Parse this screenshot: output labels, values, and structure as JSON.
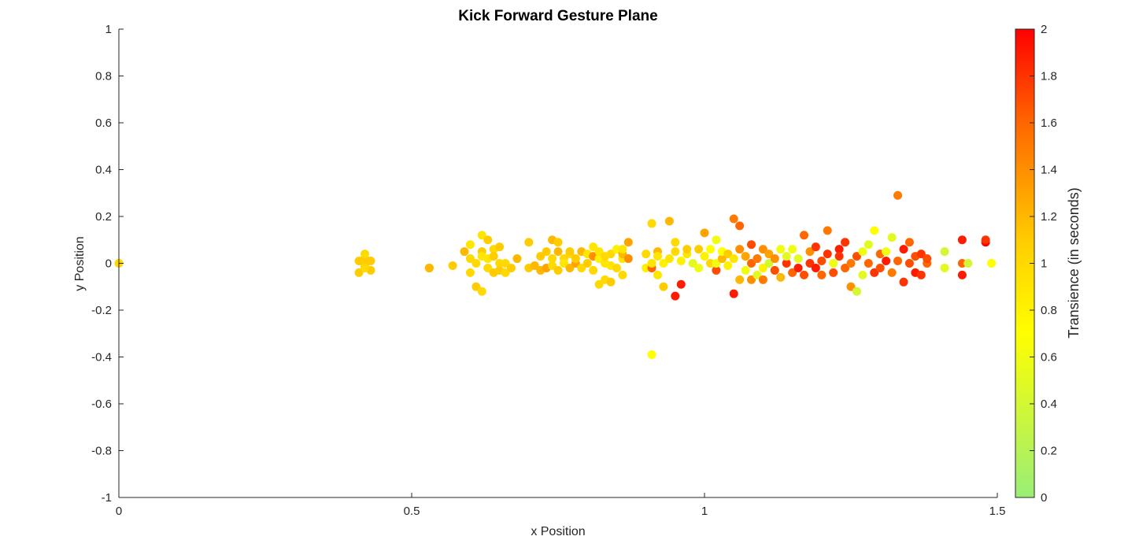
{
  "chart_data": {
    "type": "scatter",
    "title": "Kick Forward Gesture Plane",
    "xlabel": "x Position",
    "ylabel": "y Position",
    "xlim": [
      0,
      1.5
    ],
    "ylim": [
      -1,
      1
    ],
    "xticks": [
      "0",
      "0.5",
      "1",
      "1.5"
    ],
    "yticks": [
      "-1",
      "-0.8",
      "-0.6",
      "-0.4",
      "-0.2",
      "0",
      "0.2",
      "0.4",
      "0.6",
      "0.8",
      "1"
    ],
    "grid": false,
    "colorbar": {
      "label": "Transience (in seconds)",
      "range": [
        0,
        2
      ],
      "ticks": [
        "0",
        "0.2",
        "0.4",
        "0.6",
        "0.8",
        "1",
        "1.2",
        "1.4",
        "1.6",
        "1.8",
        "2"
      ],
      "colormap": [
        "#99ee77",
        "#ffff00",
        "#ffcc00",
        "#ff6600",
        "#ff0000"
      ]
    },
    "points": [
      [
        0.0,
        0.0,
        1.0
      ],
      [
        0.41,
        -0.04,
        1.1
      ],
      [
        0.42,
        0.02,
        1.1
      ],
      [
        0.42,
        -0.01,
        1.1
      ],
      [
        0.42,
        0.04,
        1.0
      ],
      [
        0.43,
        -0.03,
        1.1
      ],
      [
        0.41,
        0.01,
        1.1
      ],
      [
        0.43,
        0.01,
        1.1
      ],
      [
        0.42,
        -0.02,
        1.0
      ],
      [
        0.53,
        -0.02,
        1.3
      ],
      [
        0.53,
        -0.02,
        1.2
      ],
      [
        0.57,
        -0.01,
        1.1
      ],
      [
        0.59,
        0.05,
        1.2
      ],
      [
        0.6,
        -0.04,
        1.0
      ],
      [
        0.6,
        0.08,
        0.9
      ],
      [
        0.6,
        0.02,
        1.0
      ],
      [
        0.61,
        -0.1,
        1.1
      ],
      [
        0.61,
        0.0,
        1.0
      ],
      [
        0.62,
        -0.12,
        1.0
      ],
      [
        0.62,
        0.12,
        0.9
      ],
      [
        0.62,
        0.05,
        1.1
      ],
      [
        0.62,
        0.03,
        0.9
      ],
      [
        0.63,
        -0.02,
        1.0
      ],
      [
        0.63,
        0.1,
        1.1
      ],
      [
        0.63,
        0.02,
        0.9
      ],
      [
        0.64,
        -0.04,
        1.1
      ],
      [
        0.64,
        0.06,
        1.0
      ],
      [
        0.64,
        0.03,
        1.1
      ],
      [
        0.65,
        0.0,
        1.0
      ],
      [
        0.65,
        -0.03,
        1.1
      ],
      [
        0.65,
        0.07,
        1.1
      ],
      [
        0.66,
        0.0,
        1.0
      ],
      [
        0.66,
        -0.04,
        1.0
      ],
      [
        0.67,
        -0.02,
        1.1
      ],
      [
        0.68,
        0.02,
        1.2
      ],
      [
        0.7,
        -0.02,
        1.1
      ],
      [
        0.7,
        0.09,
        1.1
      ],
      [
        0.71,
        -0.01,
        1.2
      ],
      [
        0.72,
        -0.03,
        1.2
      ],
      [
        0.72,
        0.03,
        1.1
      ],
      [
        0.73,
        -0.02,
        1.3
      ],
      [
        0.73,
        0.05,
        1.1
      ],
      [
        0.74,
        0.1,
        1.2
      ],
      [
        0.74,
        -0.01,
        1.0
      ],
      [
        0.74,
        0.02,
        1.0
      ],
      [
        0.75,
        0.09,
        1.1
      ],
      [
        0.75,
        0.05,
        1.2
      ],
      [
        0.75,
        -0.03,
        1.1
      ],
      [
        0.76,
        0.02,
        1.0
      ],
      [
        0.76,
        0.0,
        0.9
      ],
      [
        0.77,
        0.04,
        1.0
      ],
      [
        0.77,
        -0.02,
        1.2
      ],
      [
        0.77,
        0.05,
        1.1
      ],
      [
        0.78,
        0.0,
        1.3
      ],
      [
        0.78,
        0.02,
        1.1
      ],
      [
        0.79,
        -0.02,
        1.0
      ],
      [
        0.79,
        0.05,
        1.2
      ],
      [
        0.8,
        0.0,
        1.1
      ],
      [
        0.8,
        0.04,
        0.9
      ],
      [
        0.81,
        -0.03,
        1.0
      ],
      [
        0.81,
        0.03,
        1.4
      ],
      [
        0.81,
        0.07,
        0.9
      ],
      [
        0.82,
        -0.09,
        1.0
      ],
      [
        0.82,
        0.02,
        0.8
      ],
      [
        0.82,
        0.05,
        0.9
      ],
      [
        0.83,
        -0.07,
        1.0
      ],
      [
        0.83,
        0.0,
        0.9
      ],
      [
        0.83,
        0.03,
        1.0
      ],
      [
        0.84,
        -0.08,
        1.1
      ],
      [
        0.84,
        -0.01,
        0.9
      ],
      [
        0.84,
        0.04,
        1.0
      ],
      [
        0.85,
        0.06,
        0.8
      ],
      [
        0.85,
        -0.02,
        1.0
      ],
      [
        0.86,
        0.02,
        0.9
      ],
      [
        0.86,
        0.04,
        1.2
      ],
      [
        0.86,
        -0.05,
        1.0
      ],
      [
        0.86,
        0.06,
        0.9
      ],
      [
        0.87,
        0.02,
        1.4
      ],
      [
        0.87,
        0.09,
        1.3
      ],
      [
        0.9,
        -0.02,
        0.8
      ],
      [
        0.9,
        0.04,
        1.0
      ],
      [
        0.91,
        -0.02,
        1.6
      ],
      [
        0.91,
        0.0,
        0.9
      ],
      [
        0.91,
        0.17,
        1.0
      ],
      [
        0.91,
        -0.39,
        0.7
      ],
      [
        0.92,
        0.05,
        1.2
      ],
      [
        0.92,
        0.03,
        0.9
      ],
      [
        0.92,
        -0.05,
        0.9
      ],
      [
        0.93,
        0.0,
        0.8
      ],
      [
        0.93,
        -0.1,
        1.1
      ],
      [
        0.94,
        0.18,
        1.2
      ],
      [
        0.94,
        0.02,
        0.9
      ],
      [
        0.95,
        -0.14,
        1.9
      ],
      [
        0.95,
        0.05,
        1.0
      ],
      [
        0.95,
        0.09,
        1.0
      ],
      [
        0.96,
        -0.09,
        1.9
      ],
      [
        0.96,
        0.01,
        0.8
      ],
      [
        0.97,
        0.04,
        0.9
      ],
      [
        0.97,
        0.06,
        1.1
      ],
      [
        0.98,
        0.0,
        0.5
      ],
      [
        0.99,
        0.06,
        1.1
      ],
      [
        0.99,
        -0.02,
        0.6
      ],
      [
        1.0,
        0.13,
        1.3
      ],
      [
        1.0,
        0.03,
        0.8
      ],
      [
        1.01,
        0.06,
        0.7
      ],
      [
        1.01,
        0.0,
        1.0
      ],
      [
        1.02,
        -0.03,
        1.7
      ],
      [
        1.02,
        0.0,
        0.6
      ],
      [
        1.02,
        0.1,
        0.6
      ],
      [
        1.03,
        0.02,
        1.2
      ],
      [
        1.03,
        0.05,
        0.7
      ],
      [
        1.04,
        -0.01,
        0.8
      ],
      [
        1.04,
        0.04,
        1.1
      ],
      [
        1.05,
        -0.13,
        1.9
      ],
      [
        1.05,
        0.19,
        1.5
      ],
      [
        1.05,
        0.02,
        0.9
      ],
      [
        1.06,
        -0.07,
        1.2
      ],
      [
        1.06,
        0.06,
        1.4
      ],
      [
        1.06,
        0.16,
        1.6
      ],
      [
        1.07,
        -0.03,
        0.6
      ],
      [
        1.07,
        0.03,
        1.3
      ],
      [
        1.08,
        0.0,
        1.6
      ],
      [
        1.08,
        -0.07,
        1.4
      ],
      [
        1.08,
        0.08,
        1.7
      ],
      [
        1.09,
        -0.05,
        0.5
      ],
      [
        1.09,
        0.02,
        1.5
      ],
      [
        1.1,
        -0.02,
        0.8
      ],
      [
        1.1,
        0.06,
        1.4
      ],
      [
        1.1,
        -0.07,
        1.5
      ],
      [
        1.11,
        0.04,
        1.3
      ],
      [
        1.11,
        0.0,
        0.4
      ],
      [
        1.12,
        -0.03,
        1.7
      ],
      [
        1.12,
        0.02,
        1.4
      ],
      [
        1.13,
        0.06,
        0.6
      ],
      [
        1.13,
        -0.06,
        1.2
      ],
      [
        1.14,
        0.0,
        1.8
      ],
      [
        1.14,
        0.03,
        0.5
      ],
      [
        1.15,
        -0.04,
        1.6
      ],
      [
        1.15,
        0.06,
        0.6
      ],
      [
        1.16,
        -0.02,
        1.9
      ],
      [
        1.16,
        0.02,
        0.5
      ],
      [
        1.17,
        0.12,
        1.6
      ],
      [
        1.17,
        -0.05,
        1.7
      ],
      [
        1.18,
        0.0,
        1.8
      ],
      [
        1.18,
        0.05,
        1.4
      ],
      [
        1.19,
        -0.02,
        1.9
      ],
      [
        1.19,
        0.07,
        1.8
      ],
      [
        1.2,
        0.01,
        1.7
      ],
      [
        1.2,
        -0.05,
        1.6
      ],
      [
        1.21,
        0.14,
        1.5
      ],
      [
        1.21,
        0.04,
        1.8
      ],
      [
        1.22,
        0.0,
        0.6
      ],
      [
        1.22,
        -0.04,
        1.7
      ],
      [
        1.23,
        0.06,
        1.9
      ],
      [
        1.23,
        0.03,
        1.8
      ],
      [
        1.24,
        -0.02,
        1.6
      ],
      [
        1.24,
        0.09,
        1.8
      ],
      [
        1.25,
        0.0,
        1.5
      ],
      [
        1.25,
        -0.1,
        1.4
      ],
      [
        1.26,
        -0.12,
        0.4
      ],
      [
        1.26,
        0.03,
        1.7
      ],
      [
        1.27,
        -0.05,
        0.5
      ],
      [
        1.27,
        0.05,
        0.6
      ],
      [
        1.28,
        0.08,
        0.5
      ],
      [
        1.28,
        0.0,
        1.6
      ],
      [
        1.29,
        0.14,
        0.7
      ],
      [
        1.29,
        -0.04,
        1.8
      ],
      [
        1.3,
        0.04,
        1.6
      ],
      [
        1.3,
        -0.02,
        1.7
      ],
      [
        1.31,
        0.01,
        1.9
      ],
      [
        1.31,
        0.05,
        0.6
      ],
      [
        1.32,
        -0.04,
        1.5
      ],
      [
        1.32,
        0.11,
        0.5
      ],
      [
        1.33,
        0.29,
        1.5
      ],
      [
        1.33,
        0.01,
        1.6
      ],
      [
        1.34,
        -0.08,
        1.8
      ],
      [
        1.34,
        0.06,
        1.9
      ],
      [
        1.35,
        0.0,
        1.7
      ],
      [
        1.35,
        0.09,
        1.6
      ],
      [
        1.36,
        -0.04,
        1.9
      ],
      [
        1.36,
        0.03,
        1.7
      ],
      [
        1.37,
        0.04,
        1.8
      ],
      [
        1.37,
        -0.05,
        1.8
      ],
      [
        1.38,
        0.0,
        1.6
      ],
      [
        1.38,
        0.02,
        1.7
      ],
      [
        1.41,
        -0.02,
        0.5
      ],
      [
        1.41,
        0.05,
        0.4
      ],
      [
        1.44,
        0.1,
        1.9
      ],
      [
        1.44,
        0.0,
        1.6
      ],
      [
        1.44,
        -0.05,
        1.9
      ],
      [
        1.45,
        0.0,
        0.4
      ],
      [
        1.48,
        0.09,
        2.0
      ],
      [
        1.48,
        0.1,
        1.8
      ],
      [
        1.49,
        0.0,
        0.6
      ],
      [
        1.49,
        0.0,
        0.7
      ]
    ]
  }
}
